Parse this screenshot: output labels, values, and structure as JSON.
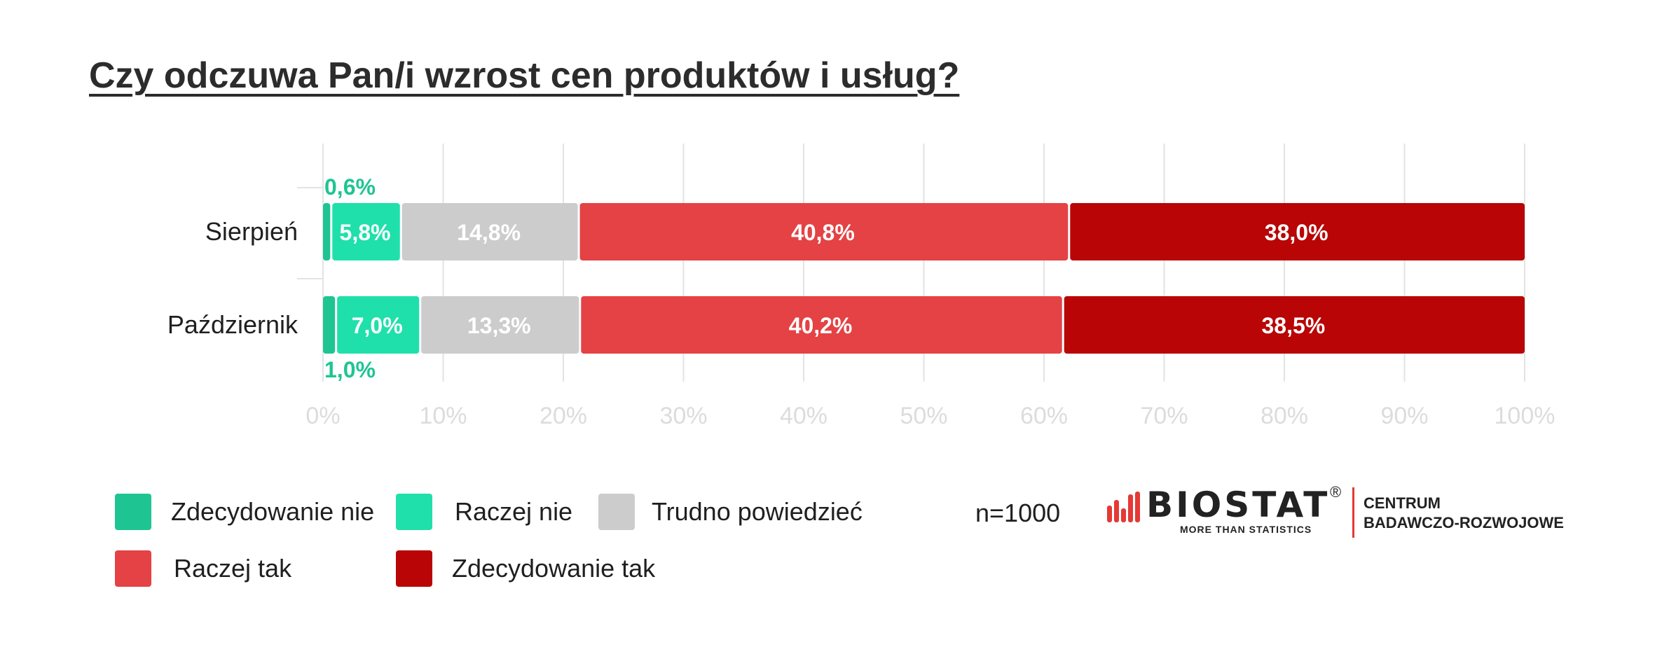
{
  "title": "Czy odczuwa Pan/i wzrost cen produktów i usług?",
  "chart_data": {
    "type": "bar",
    "orientation": "horizontal",
    "stacked": true,
    "categories": [
      "Sierpień",
      "Październik"
    ],
    "series": [
      {
        "name": "Zdecydowanie nie",
        "color": "#1ec592",
        "values": [
          0.6,
          1.0
        ],
        "labels": [
          "0,6%",
          "1,0%"
        ]
      },
      {
        "name": "Raczej nie",
        "color": "#1fe0ab",
        "values": [
          5.8,
          7.0
        ],
        "labels": [
          "5,8%",
          "7,0%"
        ]
      },
      {
        "name": "Trudno powiedzieć",
        "color": "#cccccc",
        "values": [
          14.8,
          13.3
        ],
        "labels": [
          "14,8%",
          "13,3%"
        ]
      },
      {
        "name": "Raczej tak",
        "color": "#e44244",
        "values": [
          40.8,
          40.2
        ],
        "labels": [
          "40,8%",
          "40,2%"
        ]
      },
      {
        "name": "Zdecydowanie tak",
        "color": "#b90505",
        "values": [
          38.0,
          38.5
        ],
        "labels": [
          "38,0%",
          "38,5%"
        ]
      }
    ],
    "xlim": [
      0,
      100
    ],
    "xticks": [
      "0%",
      "10%",
      "20%",
      "30%",
      "40%",
      "50%",
      "60%",
      "70%",
      "80%",
      "90%",
      "100%"
    ],
    "grid": true,
    "legend_position": "bottom-left"
  },
  "legend": [
    {
      "label": "Zdecydowanie nie",
      "color": "#1ec592"
    },
    {
      "label": "Raczej nie",
      "color": "#1fe0ab"
    },
    {
      "label": "Trudno powiedzieć",
      "color": "#cccccc"
    },
    {
      "label": "Raczej tak",
      "color": "#e44244"
    },
    {
      "label": "Zdecydowanie tak",
      "color": "#b90505"
    }
  ],
  "sample_size": "n=1000",
  "logo": {
    "name": "BIOSTAT",
    "registered": "®",
    "tagline": "MORE THAN STATISTICS",
    "subtitle_line1": "CENTRUM",
    "subtitle_line2": "BADAWCZO-ROZWOJOWE",
    "accent_color": "#e53935"
  }
}
